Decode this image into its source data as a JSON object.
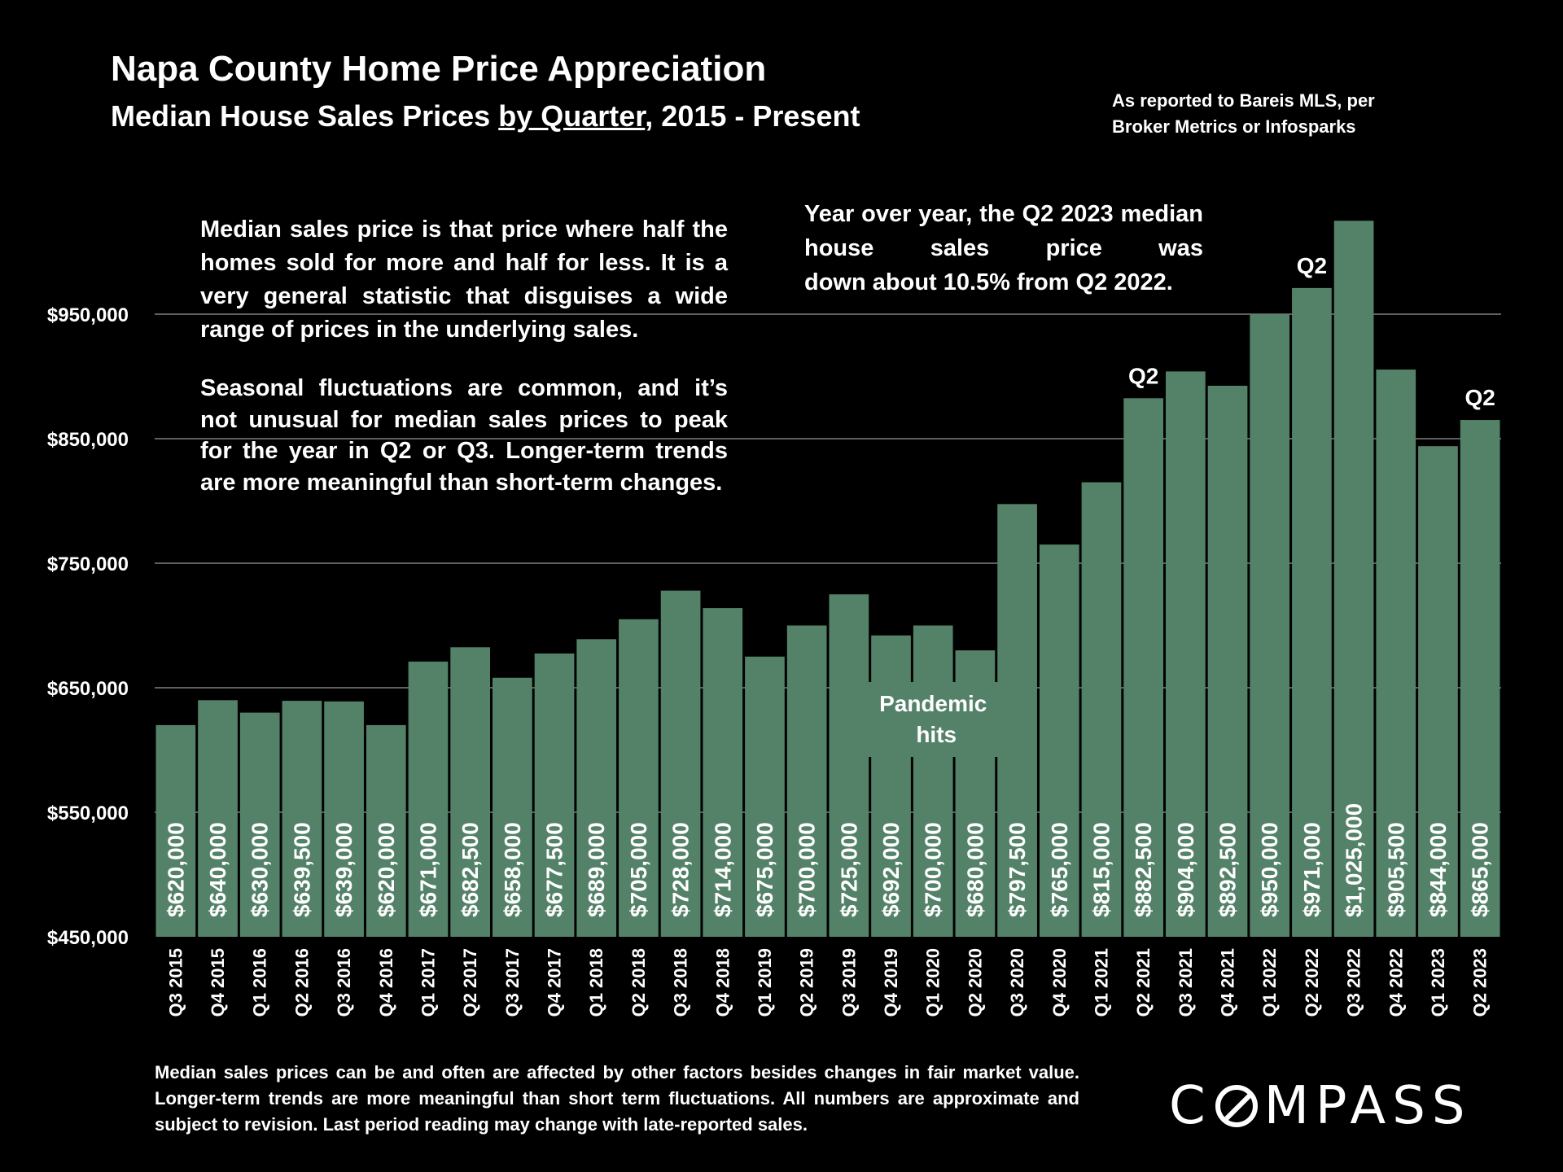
{
  "header": {
    "title": "Napa County Home Price Appreciation",
    "subtitle_before": "Median House Sales Prices ",
    "subtitle_underlined": "by Quarter",
    "subtitle_after": ", 2015 - Present",
    "source": "As reported to Bareis MLS, per Broker Metrics or Infosparks"
  },
  "notes": {
    "left_paragraph_1": "Median sales price is that price where half the homes sold for more and half for less. It is a very general statistic that disguises a wide range of prices in the underlying sales.",
    "left_paragraph_2": "Seasonal fluctuations are common, and it’s not unusual for median sales prices to peak for the year in Q2 or Q3. Longer-term trends are more meaningful than short-term changes.",
    "right_main": "Year over year, the Q2 2023 median house sales price was",
    "right_last": "down about 10.5% from Q2 2022."
  },
  "footnote": "Median sales prices can be and often are affected by other factors besides changes in fair market value. Longer-term trends are more meaningful than short term fluctuations. All numbers are approximate and subject to revision. Last period reading may change with late-reported sales.",
  "logo": {
    "before": "C",
    "after": "MPASS"
  },
  "colors": {
    "bar": "#548269",
    "background": "#000000",
    "grid": "#7f7f7f",
    "text": "#ffffff"
  },
  "chart_data": {
    "type": "bar",
    "ylim": [
      450000,
      1025000
    ],
    "yticks": [
      450000,
      550000,
      650000,
      750000,
      850000,
      950000
    ],
    "ytick_labels": [
      "$450,000",
      "$550,000",
      "$650,000",
      "$750,000",
      "$850,000",
      "$950,000"
    ],
    "grid": true,
    "categories": [
      "Q3 2015",
      "Q4 2015",
      "Q1 2016",
      "Q2 2016",
      "Q3 2016",
      "Q4 2016",
      "Q1 2017",
      "Q2 2017",
      "Q3 2017",
      "Q4 2017",
      "Q1 2018",
      "Q2 2018",
      "Q3 2018",
      "Q4 2018",
      "Q1 2019",
      "Q2 2019",
      "Q3 2019",
      "Q4 2019",
      "Q1 2020",
      "Q2 2020",
      "Q3 2020",
      "Q4 2020",
      "Q1 2021",
      "Q2 2021",
      "Q3 2021",
      "Q4 2021",
      "Q1 2022",
      "Q2 2022",
      "Q3 2022",
      "Q4 2022",
      "Q1 2023",
      "Q2 2023"
    ],
    "values": [
      620000,
      640000,
      630000,
      639500,
      639000,
      620000,
      671000,
      682500,
      658000,
      677500,
      689000,
      705000,
      728000,
      714000,
      675000,
      700000,
      725000,
      692000,
      700000,
      680000,
      797500,
      765000,
      815000,
      882500,
      904000,
      892500,
      950000,
      971000,
      1025000,
      905500,
      844000,
      865000
    ],
    "value_labels": [
      "$620,000",
      "$640,000",
      "$630,000",
      "$639,500",
      "$639,000",
      "$620,000",
      "$671,000",
      "$682,500",
      "$658,000",
      "$677,500",
      "$689,000",
      "$705,000",
      "$728,000",
      "$714,000",
      "$675,000",
      "$700,000",
      "$725,000",
      "$692,000",
      "$700,000",
      "$680,000",
      "$797,500",
      "$765,000",
      "$815,000",
      "$882,500",
      "$904,000",
      "$892,500",
      "$950,000",
      "$971,000",
      "$1,025,000",
      "$905,500",
      "$844,000",
      "$865,000"
    ],
    "annotations": [
      {
        "text": "Q2",
        "category": "Q2 2021"
      },
      {
        "text": "Q2",
        "category": "Q2 2022"
      },
      {
        "text": "Q2",
        "category": "Q2 2023"
      },
      {
        "text_line1": "Pandemic",
        "text_line2": "hits",
        "category": "Q1 2020"
      }
    ]
  }
}
